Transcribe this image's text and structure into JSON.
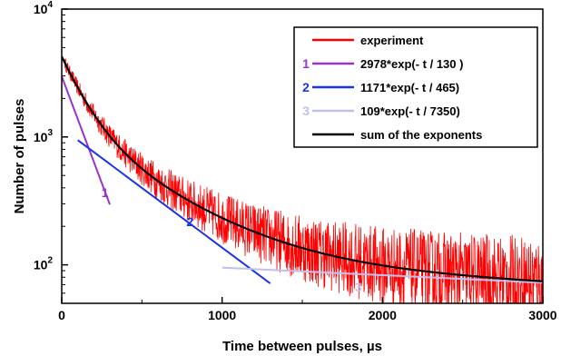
{
  "chart_data": {
    "type": "line",
    "title": "",
    "xlabel": "Time between pulses, µs",
    "ylabel": "Number of pulses",
    "xlim": [
      0,
      3000
    ],
    "ylim": [
      50,
      10000
    ],
    "yscale": "log",
    "x_ticks": [
      0,
      1000,
      2000,
      3000
    ],
    "x_tick_labels": [
      "0",
      "1000",
      "2000",
      "3000"
    ],
    "y_ticks": [
      100,
      1000,
      10000
    ],
    "y_tick_labels": [
      {
        "base": "10",
        "exp": "2"
      },
      {
        "base": "10",
        "exp": "3"
      },
      {
        "base": "10",
        "exp": "4"
      }
    ],
    "legend_position": "top-right",
    "series": [
      {
        "name": "experiment",
        "color": "#ff0000",
        "kind": "noisy_data",
        "x_range": [
          20,
          3000
        ],
        "model": "sum"
      },
      {
        "name": "2978*exp(- t / 130 )",
        "legend_number": "1",
        "color": "#9933cc",
        "amplitude": 2978,
        "tau": 130,
        "x_range": [
          0,
          300
        ]
      },
      {
        "name": "1171*exp(- t / 465)",
        "legend_number": "2",
        "color": "#1a33e6",
        "amplitude": 1171,
        "tau": 465,
        "x_range": [
          100,
          1300
        ]
      },
      {
        "name": "109*exp(- t / 7350)",
        "legend_number": "3",
        "color": "#c0c0f0",
        "amplitude": 109,
        "tau": 7350,
        "x_range": [
          1000,
          3000
        ]
      },
      {
        "name": "sum of the exponents",
        "color": "#000000",
        "kind": "sum",
        "x_range": [
          0,
          3000
        ]
      }
    ],
    "annotations": [
      {
        "text": "1",
        "x": 270,
        "y": 340,
        "color": "#9933cc"
      },
      {
        "text": "2",
        "x": 800,
        "y": 200,
        "color": "#1a33e6"
      },
      {
        "text": "3",
        "x": 1850,
        "y": 62,
        "color": "#c0c0f0"
      }
    ]
  }
}
